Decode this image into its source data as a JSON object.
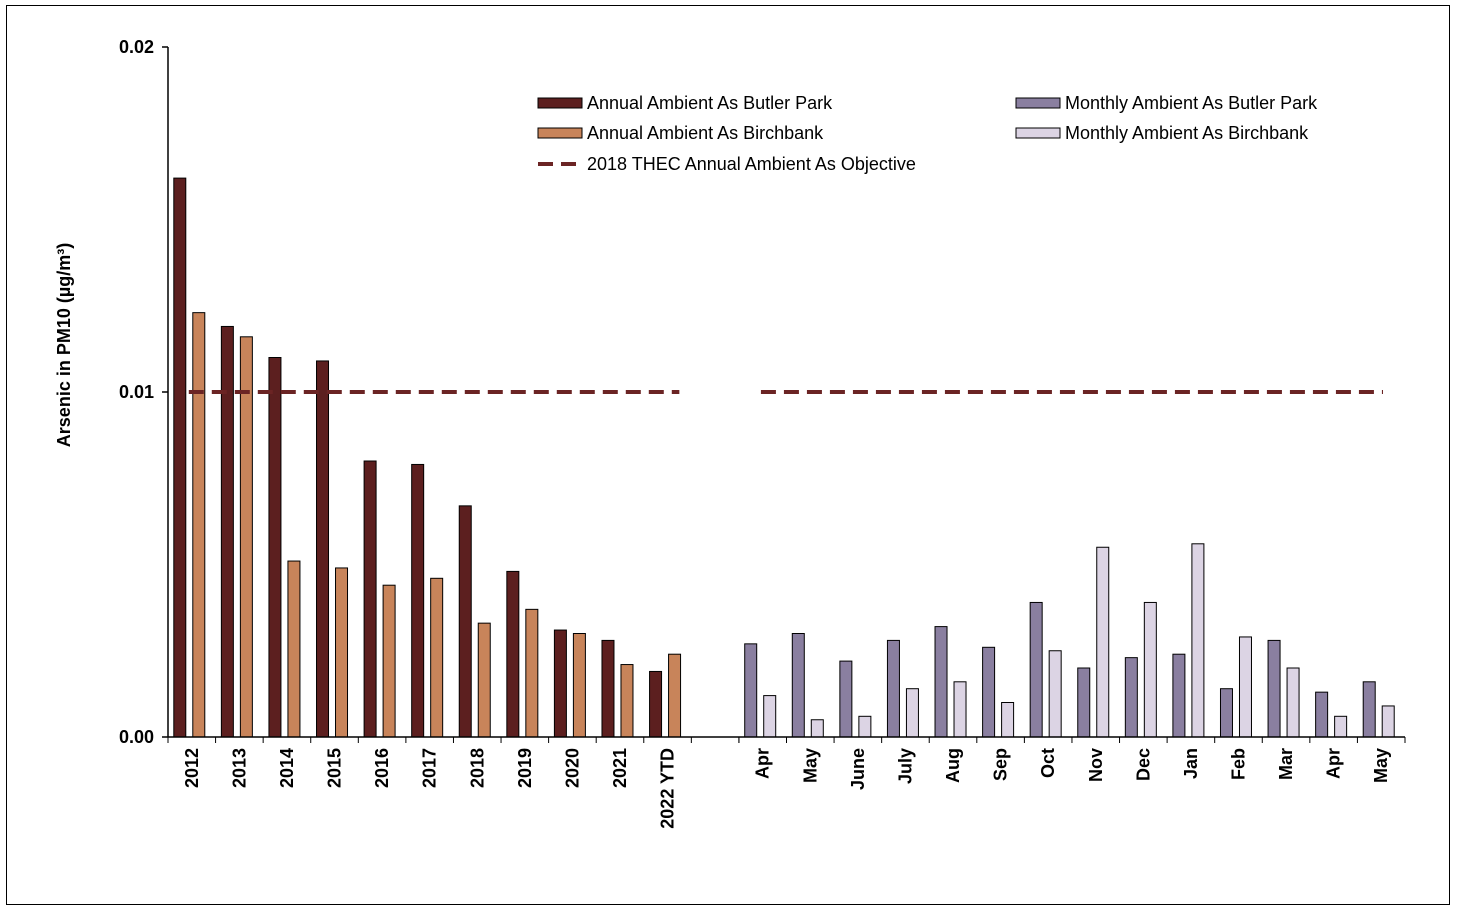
{
  "chart_data": {
    "type": "bar",
    "ylabel": "Arsenic in PM10  (µg/m³)",
    "ylim": [
      0,
      0.02
    ],
    "yticks": [
      {
        "value": 0,
        "label": "0.00"
      },
      {
        "value": 0.01,
        "label": "0.01"
      },
      {
        "value": 0.02,
        "label": "0.02"
      }
    ],
    "annual": {
      "categories": [
        "2012",
        "2013",
        "2014",
        "2015",
        "2016",
        "2017",
        "2018",
        "2019",
        "2020",
        "2021",
        "2022 YTD"
      ],
      "series": [
        {
          "name": "Annual Ambient As Butler Park",
          "color": "#5c1f1f",
          "values": [
            0.0162,
            0.0119,
            0.011,
            0.0109,
            0.008,
            0.0079,
            0.0067,
            0.0048,
            0.0031,
            0.0028,
            0.0019
          ]
        },
        {
          "name": "Annual Ambient As Birchbank",
          "color": "#c8845a",
          "values": [
            0.0123,
            0.0116,
            0.0051,
            0.0049,
            0.0044,
            0.0046,
            0.0033,
            0.0037,
            0.003,
            0.0021,
            0.0024
          ]
        }
      ]
    },
    "monthly": {
      "categories": [
        "Apr",
        "May",
        "June",
        "July",
        "Aug",
        "Sep",
        "Oct",
        "Nov",
        "Dec",
        "Jan",
        "Feb",
        "Mar",
        "Apr",
        "May"
      ],
      "series": [
        {
          "name": "Monthly Ambient As Butler Park",
          "color": "#8a7fa0",
          "values": [
            0.0027,
            0.003,
            0.0022,
            0.0028,
            0.0032,
            0.0026,
            0.0039,
            0.002,
            0.0023,
            0.0024,
            0.0014,
            0.0028,
            0.0013,
            0.0016
          ]
        },
        {
          "name": "Monthly Ambient As Birchbank",
          "color": "#dcd4e4",
          "values": [
            0.0012,
            0.0005,
            0.0006,
            0.0014,
            0.0016,
            0.001,
            0.0025,
            0.0055,
            0.0039,
            0.0056,
            0.0029,
            0.002,
            0.0006,
            0.0009
          ]
        }
      ]
    },
    "objective": {
      "name": "2018 THEC Annual Ambient As Objective",
      "value": 0.01,
      "color": "#6b2424"
    },
    "legend_position": "top-right"
  }
}
